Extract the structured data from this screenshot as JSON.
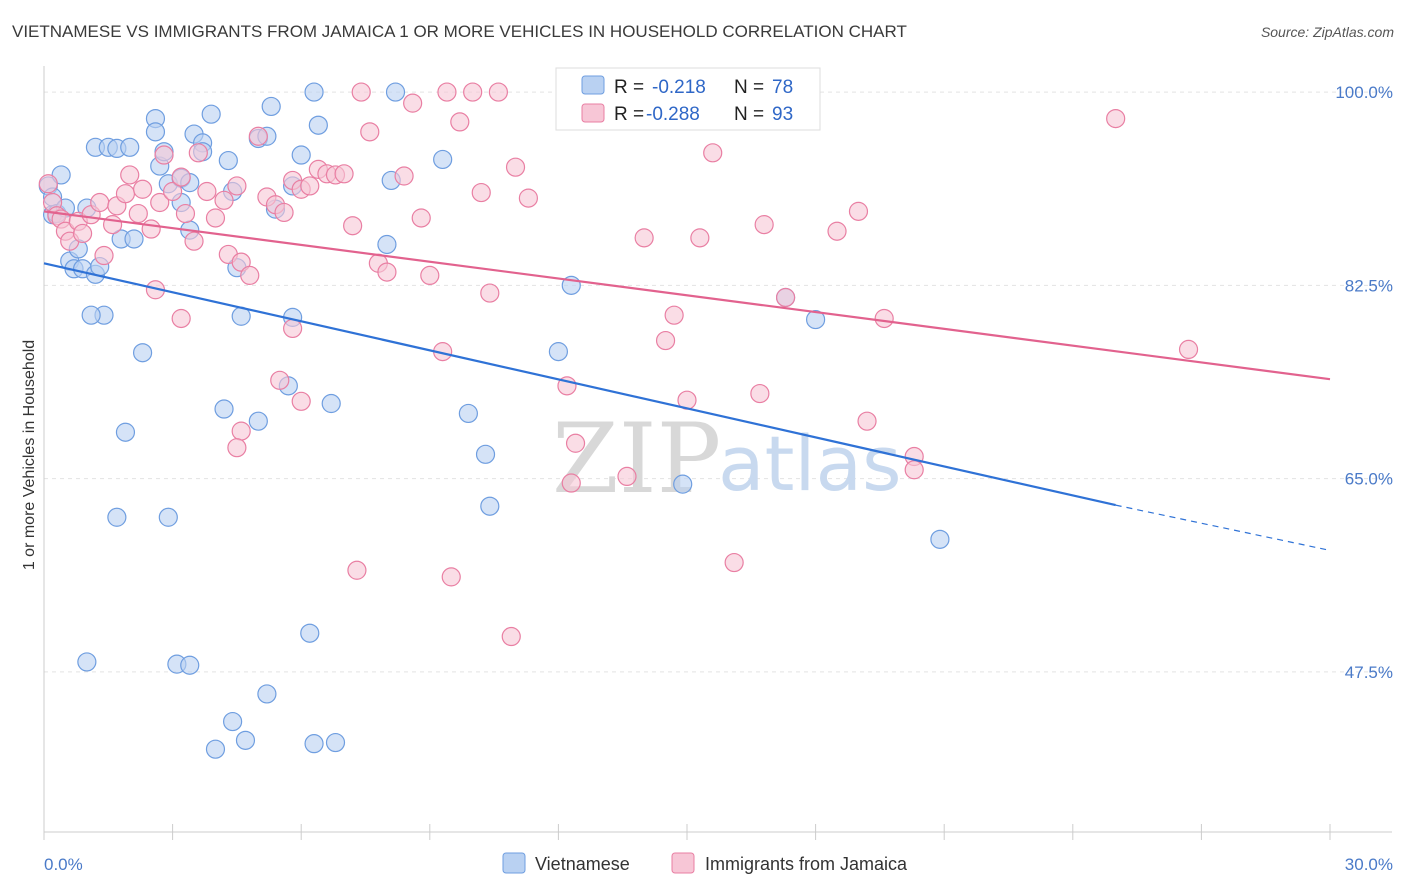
{
  "title": "VIETNAMESE VS IMMIGRANTS FROM JAMAICA 1 OR MORE VEHICLES IN HOUSEHOLD CORRELATION CHART",
  "source": "Source: ZipAtlas.com",
  "watermark": {
    "zip": "ZIP",
    "atlas": "atlas"
  },
  "chart_data": {
    "type": "scatter",
    "title": "VIETNAMESE VS IMMIGRANTS FROM JAMAICA 1 OR MORE VEHICLES IN HOUSEHOLD CORRELATION CHART",
    "xlabel": "",
    "ylabel": "1 or more Vehicles in Household",
    "xlim": [
      0,
      30
    ],
    "ylim": [
      33,
      102
    ],
    "x_tick_labels": [
      "0.0%",
      "30.0%"
    ],
    "y_ticks": [
      47.5,
      65.0,
      82.5,
      100.0
    ],
    "y_tick_labels": [
      "47.5%",
      "65.0%",
      "82.5%",
      "100.0%"
    ],
    "grid": true,
    "legend_position": "top-center",
    "series": [
      {
        "name": "Vietnamese",
        "color": "#6f9ee0",
        "fill": "#b9d1f2",
        "r_label": "R =",
        "r_value": "-0.218",
        "n_label": "N =",
        "n_value": "78",
        "trend": {
          "x0": 0,
          "y0": 84.5,
          "x1": 25.0,
          "y1": 62.6,
          "dash_to_x": 30,
          "dash_to_y": 58.5
        },
        "points": [
          [
            0.1,
            91.5
          ],
          [
            0.2,
            90.5
          ],
          [
            0.2,
            88.9
          ],
          [
            0.3,
            89.0
          ],
          [
            0.4,
            92.5
          ],
          [
            0.5,
            89.5
          ],
          [
            0.6,
            84.7
          ],
          [
            0.7,
            84.0
          ],
          [
            0.8,
            85.8
          ],
          [
            0.9,
            84.0
          ],
          [
            1.0,
            89.5
          ],
          [
            1.2,
            83.5
          ],
          [
            1.3,
            84.2
          ],
          [
            1.2,
            95.0
          ],
          [
            1.5,
            95.0
          ],
          [
            1.7,
            94.9
          ],
          [
            1.8,
            86.7
          ],
          [
            2.1,
            86.7
          ],
          [
            2.0,
            95.0
          ],
          [
            2.6,
            97.6
          ],
          [
            2.6,
            96.4
          ],
          [
            2.7,
            93.3
          ],
          [
            2.8,
            94.6
          ],
          [
            2.9,
            91.7
          ],
          [
            3.2,
            90.0
          ],
          [
            3.2,
            92.2
          ],
          [
            3.4,
            87.5
          ],
          [
            3.4,
            91.8
          ],
          [
            3.5,
            96.2
          ],
          [
            3.7,
            95.4
          ],
          [
            3.7,
            94.6
          ],
          [
            3.9,
            98.0
          ],
          [
            4.3,
            93.8
          ],
          [
            4.5,
            84.1
          ],
          [
            4.6,
            79.7
          ],
          [
            4.4,
            91.0
          ],
          [
            5.0,
            95.8
          ],
          [
            5.2,
            96.0
          ],
          [
            5.3,
            98.7
          ],
          [
            5.4,
            89.4
          ],
          [
            5.8,
            91.5
          ],
          [
            5.8,
            79.6
          ],
          [
            6.0,
            94.3
          ],
          [
            6.3,
            100.0
          ],
          [
            6.4,
            97.0
          ],
          [
            8.1,
            92.0
          ],
          [
            8.2,
            100.0
          ],
          [
            9.3,
            93.9
          ],
          [
            8.0,
            86.2
          ],
          [
            1.4,
            79.8
          ],
          [
            1.1,
            79.8
          ],
          [
            2.3,
            76.4
          ],
          [
            1.9,
            69.2
          ],
          [
            1.7,
            61.5
          ],
          [
            4.2,
            71.3
          ],
          [
            5.0,
            70.2
          ],
          [
            5.7,
            73.4
          ],
          [
            6.7,
            71.8
          ],
          [
            9.9,
            70.9
          ],
          [
            10.3,
            67.2
          ],
          [
            10.4,
            62.5
          ],
          [
            12.0,
            76.5
          ],
          [
            12.3,
            82.5
          ],
          [
            14.9,
            64.5
          ],
          [
            17.3,
            81.4
          ],
          [
            18.0,
            79.4
          ],
          [
            20.9,
            59.5
          ],
          [
            2.9,
            61.5
          ],
          [
            1.0,
            48.4
          ],
          [
            3.1,
            48.2
          ],
          [
            3.4,
            48.1
          ],
          [
            4.0,
            40.5
          ],
          [
            4.4,
            43.0
          ],
          [
            4.7,
            41.3
          ],
          [
            5.2,
            45.5
          ],
          [
            6.2,
            51.0
          ],
          [
            6.3,
            41.0
          ],
          [
            6.8,
            41.1
          ]
        ]
      },
      {
        "name": "Immigrants from Jamaica",
        "color": "#e97fa3",
        "fill": "#f7c6d6",
        "r_label": "R =",
        "r_value": "-0.288",
        "n_label": "N =",
        "n_value": "93",
        "trend": {
          "x0": 0,
          "y0": 89.2,
          "x1": 30,
          "y1": 74.0
        },
        "points": [
          [
            0.1,
            91.7
          ],
          [
            0.2,
            90.0
          ],
          [
            0.3,
            88.8
          ],
          [
            0.4,
            88.5
          ],
          [
            0.5,
            87.4
          ],
          [
            0.6,
            86.5
          ],
          [
            0.8,
            88.3
          ],
          [
            0.9,
            87.2
          ],
          [
            1.1,
            88.9
          ],
          [
            1.3,
            90.0
          ],
          [
            1.4,
            85.2
          ],
          [
            1.6,
            88.0
          ],
          [
            1.7,
            89.7
          ],
          [
            1.9,
            90.8
          ],
          [
            2.0,
            92.5
          ],
          [
            2.2,
            89.0
          ],
          [
            2.3,
            91.2
          ],
          [
            2.5,
            87.6
          ],
          [
            2.6,
            82.1
          ],
          [
            2.7,
            90.0
          ],
          [
            2.8,
            94.3
          ],
          [
            3.0,
            91.0
          ],
          [
            3.2,
            92.3
          ],
          [
            3.3,
            89.0
          ],
          [
            3.5,
            86.5
          ],
          [
            3.6,
            94.5
          ],
          [
            3.8,
            91.0
          ],
          [
            4.0,
            88.6
          ],
          [
            4.2,
            90.2
          ],
          [
            4.3,
            85.3
          ],
          [
            4.5,
            91.5
          ],
          [
            4.6,
            84.6
          ],
          [
            4.8,
            83.4
          ],
          [
            5.0,
            96.0
          ],
          [
            5.2,
            90.5
          ],
          [
            5.4,
            89.8
          ],
          [
            5.6,
            89.1
          ],
          [
            5.8,
            92.0
          ],
          [
            6.0,
            91.2
          ],
          [
            6.2,
            91.5
          ],
          [
            6.4,
            93.0
          ],
          [
            6.6,
            92.6
          ],
          [
            6.8,
            92.5
          ],
          [
            7.0,
            92.6
          ],
          [
            7.2,
            87.9
          ],
          [
            7.4,
            100.0
          ],
          [
            7.6,
            96.4
          ],
          [
            7.8,
            84.5
          ],
          [
            8.0,
            83.7
          ],
          [
            8.4,
            92.4
          ],
          [
            8.6,
            99.0
          ],
          [
            8.8,
            88.6
          ],
          [
            9.0,
            83.4
          ],
          [
            9.4,
            100.0
          ],
          [
            9.7,
            97.3
          ],
          [
            10.0,
            100.0
          ],
          [
            10.2,
            90.9
          ],
          [
            10.6,
            100.0
          ],
          [
            11.0,
            93.2
          ],
          [
            11.3,
            90.4
          ],
          [
            6.0,
            72.0
          ],
          [
            5.5,
            73.9
          ],
          [
            4.6,
            69.3
          ],
          [
            4.5,
            67.8
          ],
          [
            3.2,
            79.5
          ],
          [
            5.8,
            78.6
          ],
          [
            9.3,
            76.5
          ],
          [
            10.4,
            81.8
          ],
          [
            12.2,
            73.4
          ],
          [
            12.4,
            68.2
          ],
          [
            12.3,
            64.6
          ],
          [
            13.6,
            65.2
          ],
          [
            14.0,
            86.8
          ],
          [
            14.5,
            77.5
          ],
          [
            14.7,
            79.8
          ],
          [
            15.3,
            86.8
          ],
          [
            15.6,
            94.5
          ],
          [
            16.1,
            57.4
          ],
          [
            16.7,
            72.7
          ],
          [
            16.8,
            88.0
          ],
          [
            17.3,
            81.4
          ],
          [
            18.5,
            87.4
          ],
          [
            19.0,
            89.2
          ],
          [
            19.2,
            70.2
          ],
          [
            19.6,
            79.5
          ],
          [
            20.3,
            67.0
          ],
          [
            20.3,
            65.8
          ],
          [
            25.0,
            97.6
          ],
          [
            26.7,
            76.7
          ],
          [
            7.3,
            56.7
          ],
          [
            9.5,
            56.1
          ],
          [
            10.9,
            50.7
          ],
          [
            15.0,
            72.1
          ]
        ]
      }
    ]
  }
}
